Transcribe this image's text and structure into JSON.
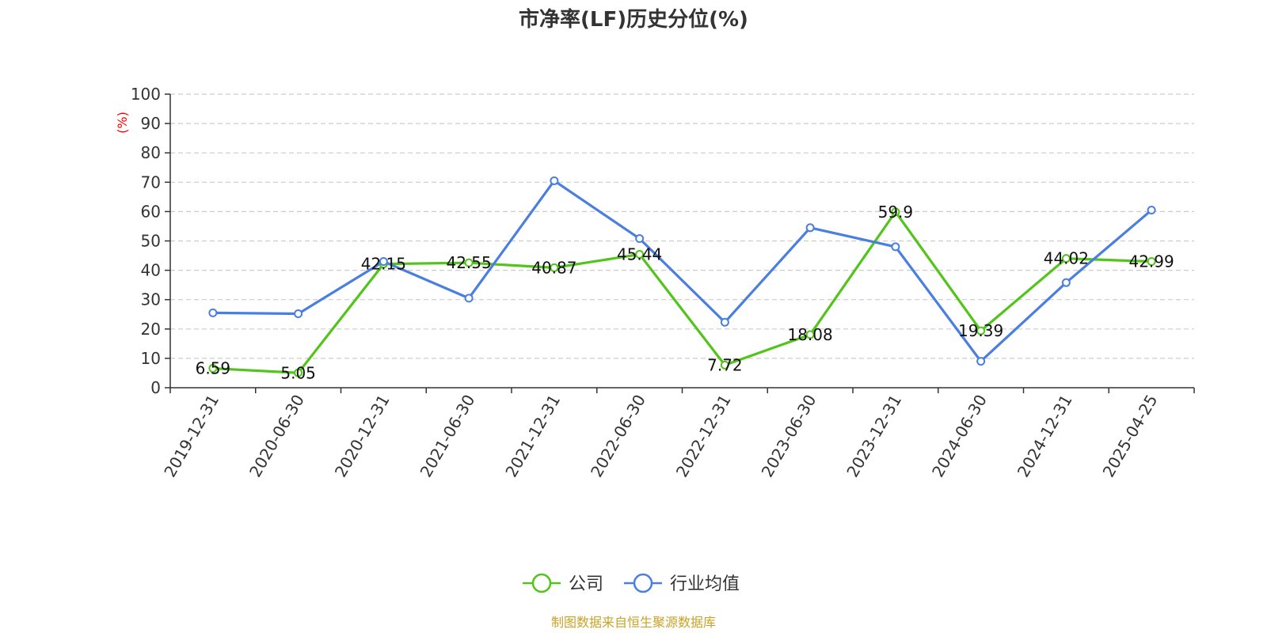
{
  "chart_data": {
    "type": "line",
    "title": "市净率(LF)历史分位(%)",
    "ylabel": "(%)",
    "ylabel_color": "#ff0000",
    "ylim": [
      0,
      100
    ],
    "yticks": [
      "0",
      "10",
      "20",
      "30",
      "40",
      "50",
      "60",
      "70",
      "80",
      "90",
      "100"
    ],
    "grid": "horizontal dashed",
    "categories": [
      "2019-12-31",
      "2020-06-30",
      "2020-12-31",
      "2021-06-30",
      "2021-12-31",
      "2022-06-30",
      "2022-12-31",
      "2023-06-30",
      "2023-12-31",
      "2024-06-30",
      "2024-12-31",
      "2025-04-25"
    ],
    "series": [
      {
        "name": "公司",
        "color": "#52c41a",
        "values": [
          6.59,
          5.05,
          42.15,
          42.55,
          40.87,
          45.44,
          7.72,
          18.08,
          59.9,
          19.39,
          44.02,
          42.99
        ],
        "labels": [
          "6.59",
          "5.05",
          "42.15",
          "42.55",
          "40.87",
          "45.44",
          "7.72",
          "18.08",
          "59.9",
          "19.39",
          "44.02",
          "42.99"
        ]
      },
      {
        "name": "行业均值",
        "color": "#4a7fe0",
        "values": [
          25.5,
          25.2,
          43.0,
          30.5,
          70.5,
          50.8,
          22.3,
          54.5,
          48.0,
          9.0,
          35.8,
          60.5
        ]
      }
    ],
    "legend_position": "bottom-center"
  },
  "source": {
    "text": "制图数据来自恒生聚源数据库",
    "color": "#c9a227"
  }
}
